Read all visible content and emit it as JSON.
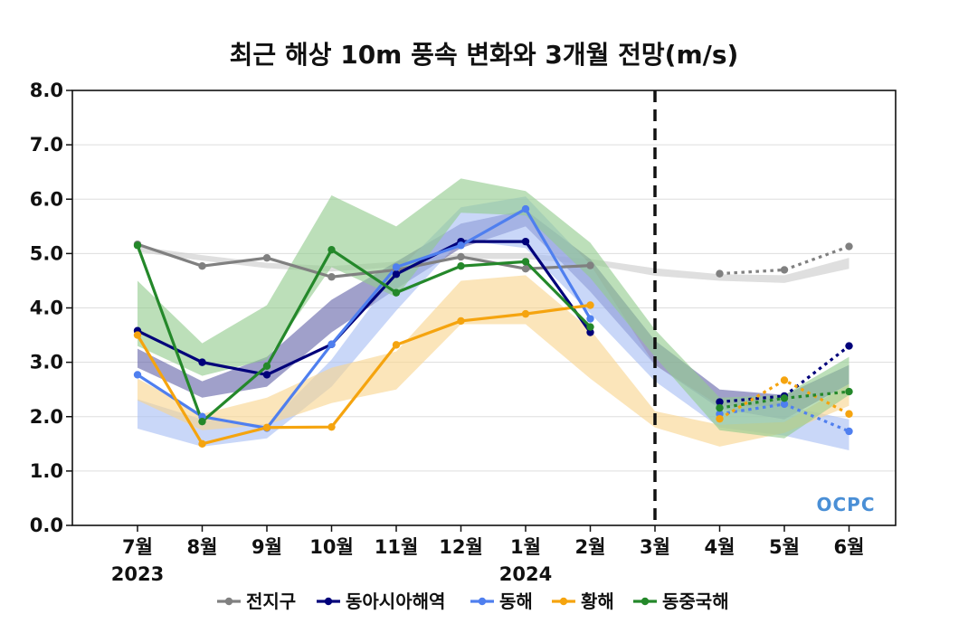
{
  "chart_data": {
    "type": "line",
    "title": "최근 해상 10m 풍속 변화와 3개월 전망(m/s)",
    "categories": [
      "7월",
      "8월",
      "9월",
      "10월",
      "11월",
      "12월",
      "1월",
      "2월",
      "3월",
      "4월",
      "5월",
      "6월"
    ],
    "year_labels": [
      {
        "category": "7월",
        "label": "2023"
      },
      {
        "category": "1월",
        "label": "2024"
      }
    ],
    "ylim": [
      0,
      8
    ],
    "yticks": [
      "0.0",
      "1.0",
      "2.0",
      "3.0",
      "4.0",
      "5.0",
      "6.0",
      "7.0",
      "8.0"
    ],
    "grid": true,
    "legend_position": "bottom",
    "divider_after_category": "3월",
    "series": [
      {
        "name": "전지구",
        "color": "#808080",
        "observed": [
          5.17,
          4.77,
          4.92,
          4.57,
          4.7,
          4.94,
          4.72,
          4.78,
          null,
          null,
          null,
          null
        ],
        "forecast": [
          null,
          null,
          null,
          null,
          null,
          null,
          null,
          null,
          null,
          4.63,
          4.7,
          5.13
        ],
        "band": {
          "color": "#cccccc",
          "upper": [
            5.13,
            4.97,
            4.83,
            4.77,
            4.85,
            5.0,
            5.0,
            4.9,
            4.73,
            4.62,
            4.6,
            4.92
          ],
          "lower": [
            5.03,
            4.87,
            4.73,
            4.67,
            4.75,
            4.9,
            4.9,
            4.8,
            4.59,
            4.5,
            4.46,
            4.72
          ]
        }
      },
      {
        "name": "동아시아해역",
        "color": "#00007a",
        "observed": [
          3.58,
          3.0,
          2.77,
          3.33,
          4.62,
          5.22,
          5.22,
          3.55,
          null,
          null,
          null,
          null
        ],
        "forecast": [
          null,
          null,
          null,
          null,
          null,
          null,
          null,
          null,
          null,
          2.27,
          2.38,
          3.3
        ],
        "band": {
          "color": "#6666aa",
          "upper": [
            3.25,
            2.65,
            3.1,
            4.15,
            4.85,
            5.55,
            5.8,
            4.9,
            3.4,
            2.5,
            2.4,
            2.95
          ],
          "lower": [
            2.9,
            2.35,
            2.55,
            3.55,
            4.35,
            5.1,
            5.5,
            4.3,
            2.95,
            2.15,
            1.95,
            2.6
          ]
        }
      },
      {
        "name": "동해",
        "color": "#4f7fef",
        "observed": [
          2.77,
          2.0,
          1.79,
          3.33,
          4.75,
          5.15,
          5.82,
          3.8,
          null,
          null,
          null,
          null
        ],
        "forecast": [
          null,
          null,
          null,
          null,
          null,
          null,
          null,
          null,
          null,
          2.05,
          2.23,
          1.73
        ],
        "band": {
          "color": "#a8bff4",
          "upper": [
            2.32,
            1.95,
            1.85,
            3.05,
            4.65,
            5.85,
            6.05,
            4.8,
            2.95,
            2.2,
            2.2,
            1.95
          ],
          "lower": [
            1.78,
            1.45,
            1.6,
            2.55,
            3.95,
            5.25,
            5.1,
            3.9,
            2.65,
            1.8,
            1.65,
            1.38
          ]
        }
      },
      {
        "name": "황해",
        "color": "#f5a40f",
        "observed": [
          3.5,
          1.5,
          1.8,
          1.81,
          3.32,
          3.76,
          3.89,
          4.05,
          null,
          null,
          null,
          null
        ],
        "forecast": [
          null,
          null,
          null,
          null,
          null,
          null,
          null,
          null,
          null,
          1.96,
          2.67,
          2.05
        ],
        "band": {
          "color": "#f9d590",
          "upper": [
            2.7,
            2.05,
            2.35,
            2.9,
            3.2,
            4.5,
            4.6,
            3.6,
            2.1,
            1.85,
            1.9,
            2.6
          ],
          "lower": [
            2.3,
            1.75,
            1.85,
            2.25,
            2.5,
            3.7,
            3.7,
            2.7,
            1.8,
            1.45,
            1.7,
            2.2
          ]
        }
      },
      {
        "name": "동중국해",
        "color": "#24882a",
        "observed": [
          5.15,
          1.91,
          2.93,
          5.07,
          4.28,
          4.77,
          4.85,
          3.65,
          null,
          null,
          null,
          null
        ],
        "forecast": [
          null,
          null,
          null,
          null,
          null,
          null,
          null,
          null,
          null,
          2.16,
          2.34,
          2.46
        ],
        "band": {
          "color": "#93cc8e",
          "upper": [
            4.5,
            3.35,
            4.05,
            6.07,
            5.5,
            6.38,
            6.15,
            5.2,
            3.6,
            2.35,
            2.4,
            3.1
          ],
          "lower": [
            3.3,
            2.75,
            3.05,
            4.75,
            4.2,
            5.75,
            5.7,
            4.55,
            3.1,
            1.75,
            1.6,
            2.4
          ]
        }
      }
    ]
  },
  "logo": {
    "text": "OCPC",
    "color": "#4a8fd6"
  }
}
